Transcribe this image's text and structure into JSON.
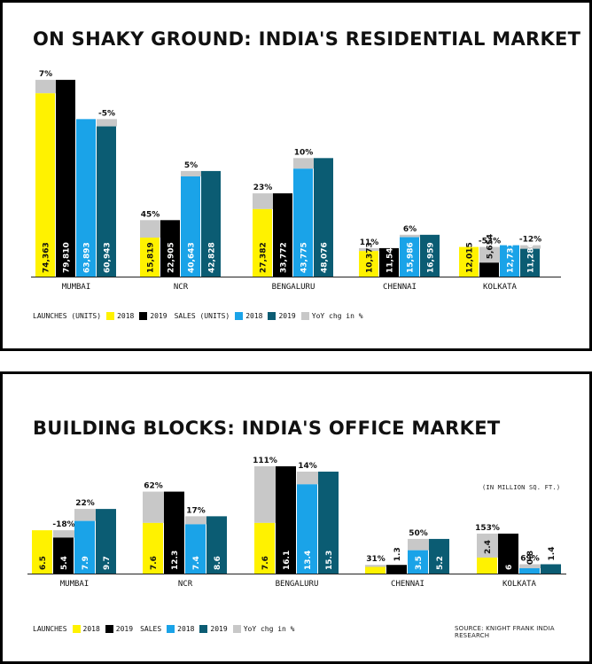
{
  "colors": {
    "launch_2018": "#fff200",
    "launch_2019": "#000000",
    "sales_2018": "#1aa3e8",
    "sales_2019": "#0b5c73",
    "yoy": "#c8c8c8"
  },
  "legend": {
    "residential": {
      "launches_label": "LAUNCHES (UNITS)",
      "sales_label": "SALES (UNITS)",
      "y2018": "2018",
      "y2019": "2019",
      "yoy_label": "YoY chg in %"
    },
    "office": {
      "launches_label": "LAUNCHES",
      "sales_label": "SALES",
      "y2018": "2018",
      "y2019": "2019",
      "yoy_label": "YoY chg in %"
    }
  },
  "chart_data": [
    {
      "type": "bar",
      "title": "ON SHAKY GROUND: INDIA'S RESIDENTIAL MARKET",
      "categories": [
        "MUMBAI",
        "NCR",
        "BENGALURU",
        "CHENNAI",
        "KOLKATA"
      ],
      "series": [
        {
          "name": "LAUNCHES (UNITS) 2018",
          "values": [
            74363,
            15819,
            27382,
            10373,
            12015
          ],
          "labels": [
            "74,363",
            "15,819",
            "27,382",
            "10,373",
            "12,015"
          ]
        },
        {
          "name": "LAUNCHES (UNITS) 2019",
          "values": [
            79810,
            22905,
            33772,
            11542,
            5654
          ],
          "labels": [
            "79,810",
            "22,905",
            "33,772",
            "11,542",
            "5,654"
          ]
        },
        {
          "name": "SALES (UNITS) 2018",
          "values": [
            63893,
            40643,
            43775,
            15986,
            12731
          ],
          "labels": [
            "63,893",
            "40,643",
            "43,775",
            "15,986",
            "12,731"
          ]
        },
        {
          "name": "SALES (UNITS) 2019",
          "values": [
            60943,
            42828,
            48076,
            16959,
            11286
          ],
          "labels": [
            "60,943",
            "42,828",
            "48,076",
            "16,959",
            "11,286"
          ]
        }
      ],
      "yoy_launches": [
        "7%",
        "45%",
        "23%",
        "11%",
        "-53%"
      ],
      "yoy_sales": [
        "-5%",
        "5%",
        "10%",
        "6%",
        "-12%"
      ],
      "ylim": [
        0,
        82000
      ],
      "legend_position": "bottom-left"
    },
    {
      "type": "bar",
      "title": "BUILDING BLOCKS: INDIA'S OFFICE MARKET",
      "unit_note": "(IN MILLION SQ. FT.)",
      "source": "SOURCE: KNIGHT FRANK INDIA RESEARCH",
      "categories": [
        "MUMBAI",
        "NCR",
        "BENGALURU",
        "CHENNAI",
        "KOLKATA"
      ],
      "series": [
        {
          "name": "LAUNCHES 2018",
          "values": [
            6.5,
            7.6,
            7.6,
            1.0,
            2.4
          ],
          "labels": [
            "6.5",
            "7.6",
            "7.6",
            "",
            "2.4"
          ]
        },
        {
          "name": "LAUNCHES 2019",
          "values": [
            5.4,
            12.3,
            16.1,
            1.3,
            6.0
          ],
          "labels": [
            "5.4",
            "12.3",
            "16.1",
            "1.3",
            "6"
          ]
        },
        {
          "name": "SALES 2018",
          "values": [
            7.9,
            7.4,
            13.4,
            3.5,
            0.8
          ],
          "labels": [
            "7.9",
            "7.4",
            "13.4",
            "3.5",
            "0.8"
          ]
        },
        {
          "name": "SALES 2019",
          "values": [
            9.7,
            8.6,
            15.3,
            5.2,
            1.4
          ],
          "labels": [
            "9.7",
            "8.6",
            "15.3",
            "5.2",
            "1.4"
          ]
        }
      ],
      "yoy_launches": [
        "-18%",
        "62%",
        "111%",
        "31%",
        "153%"
      ],
      "yoy_sales": [
        "22%",
        "17%",
        "14%",
        "50%",
        "69%"
      ],
      "ylim": [
        0,
        16.5
      ],
      "legend_position": "bottom-left"
    }
  ]
}
